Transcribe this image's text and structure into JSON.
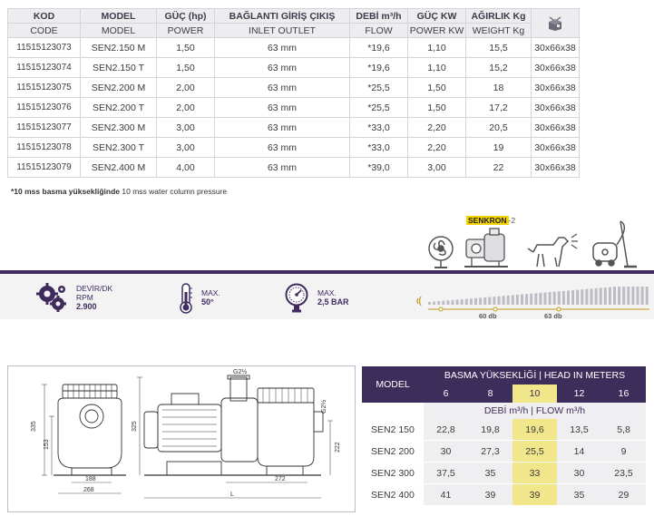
{
  "spec_table": {
    "headers_tr": [
      "KOD",
      "MODEL",
      "GÜÇ (hp)",
      "BAĞLANTI GİRİŞ ÇIKIŞ",
      "DEBİ m³/h",
      "GÜÇ KW",
      "AĞIRLIK Kg"
    ],
    "headers_en": [
      "CODE",
      "MODEL",
      "POWER",
      "INLET OUTLET",
      "FLOW",
      "POWER KW",
      "WEIGHT Kg",
      ""
    ],
    "box_icon": "package-box-icon",
    "rows": [
      [
        "11515123073",
        "SEN2.150 M",
        "1,50",
        "63 mm",
        "*19,6",
        "1,10",
        "15,5",
        "30x66x38"
      ],
      [
        "11515123074",
        "SEN2.150 T",
        "1,50",
        "63 mm",
        "*19,6",
        "1,10",
        "15,2",
        "30x66x38"
      ],
      [
        "11515123075",
        "SEN2.200 M",
        "2,00",
        "63 mm",
        "*25,5",
        "1,50",
        "18",
        "30x66x38"
      ],
      [
        "11515123076",
        "SEN2.200 T",
        "2,00",
        "63 mm",
        "*25,5",
        "1,50",
        "17,2",
        "30x66x38"
      ],
      [
        "11515123077",
        "SEN2.300 M",
        "3,00",
        "63 mm",
        "*33,0",
        "2,20",
        "20,5",
        "30x66x38"
      ],
      [
        "11515123078",
        "SEN2.300 T",
        "3,00",
        "63 mm",
        "*33,0",
        "2,20",
        "19",
        "30x66x38"
      ],
      [
        "11515123079",
        "SEN2.400 M",
        "4,00",
        "63 mm",
        "*39,0",
        "3,00",
        "22",
        "30x66x38"
      ]
    ]
  },
  "note": {
    "bold": "*10 mss basma yüksekliğinde",
    "rest": " 10 mss water column pressure"
  },
  "noise": {
    "brand_a": "SENKRON",
    "brand_b": "-2",
    "icons": [
      "fan-icon",
      "pump-icon",
      "barking-dog-icon",
      "vacuum-cleaner-icon"
    ],
    "level_60": "60 db",
    "level_63": "63 db",
    "speaker_icon": "sound-wave-icon"
  },
  "specs_band": {
    "rpm_label_1": "DEVİR/DK",
    "rpm_label_2": "RPM",
    "rpm_value": "2.900",
    "temp_label": "MAX.",
    "temp_value": "50°",
    "pressure_label": "MAX.",
    "pressure_value": "2,5 BAR"
  },
  "drawing": {
    "dims": [
      "335",
      "153",
      "188",
      "268",
      "325",
      "G2½",
      "G2½",
      "222",
      "272",
      "L"
    ]
  },
  "flow_table": {
    "model_header": "MODEL",
    "head_title": "BASMA YÜKSEKLİĞİ | HEAD IN METERS",
    "heads": [
      "6",
      "8",
      "10",
      "12",
      "16"
    ],
    "flow_title": "DEBİ m³/h | FLOW m³/h",
    "rows": [
      {
        "model": "SEN2 150",
        "values": [
          "22,8",
          "19,8",
          "19,6",
          "13,5",
          "5,8"
        ]
      },
      {
        "model": "SEN2 200",
        "values": [
          "30",
          "27,3",
          "25,5",
          "14",
          "9"
        ]
      },
      {
        "model": "SEN2 300",
        "values": [
          "37,5",
          "35",
          "33",
          "30",
          "23,5"
        ]
      },
      {
        "model": "SEN2 400",
        "values": [
          "41",
          "39",
          "39",
          "35",
          "29"
        ]
      }
    ]
  }
}
